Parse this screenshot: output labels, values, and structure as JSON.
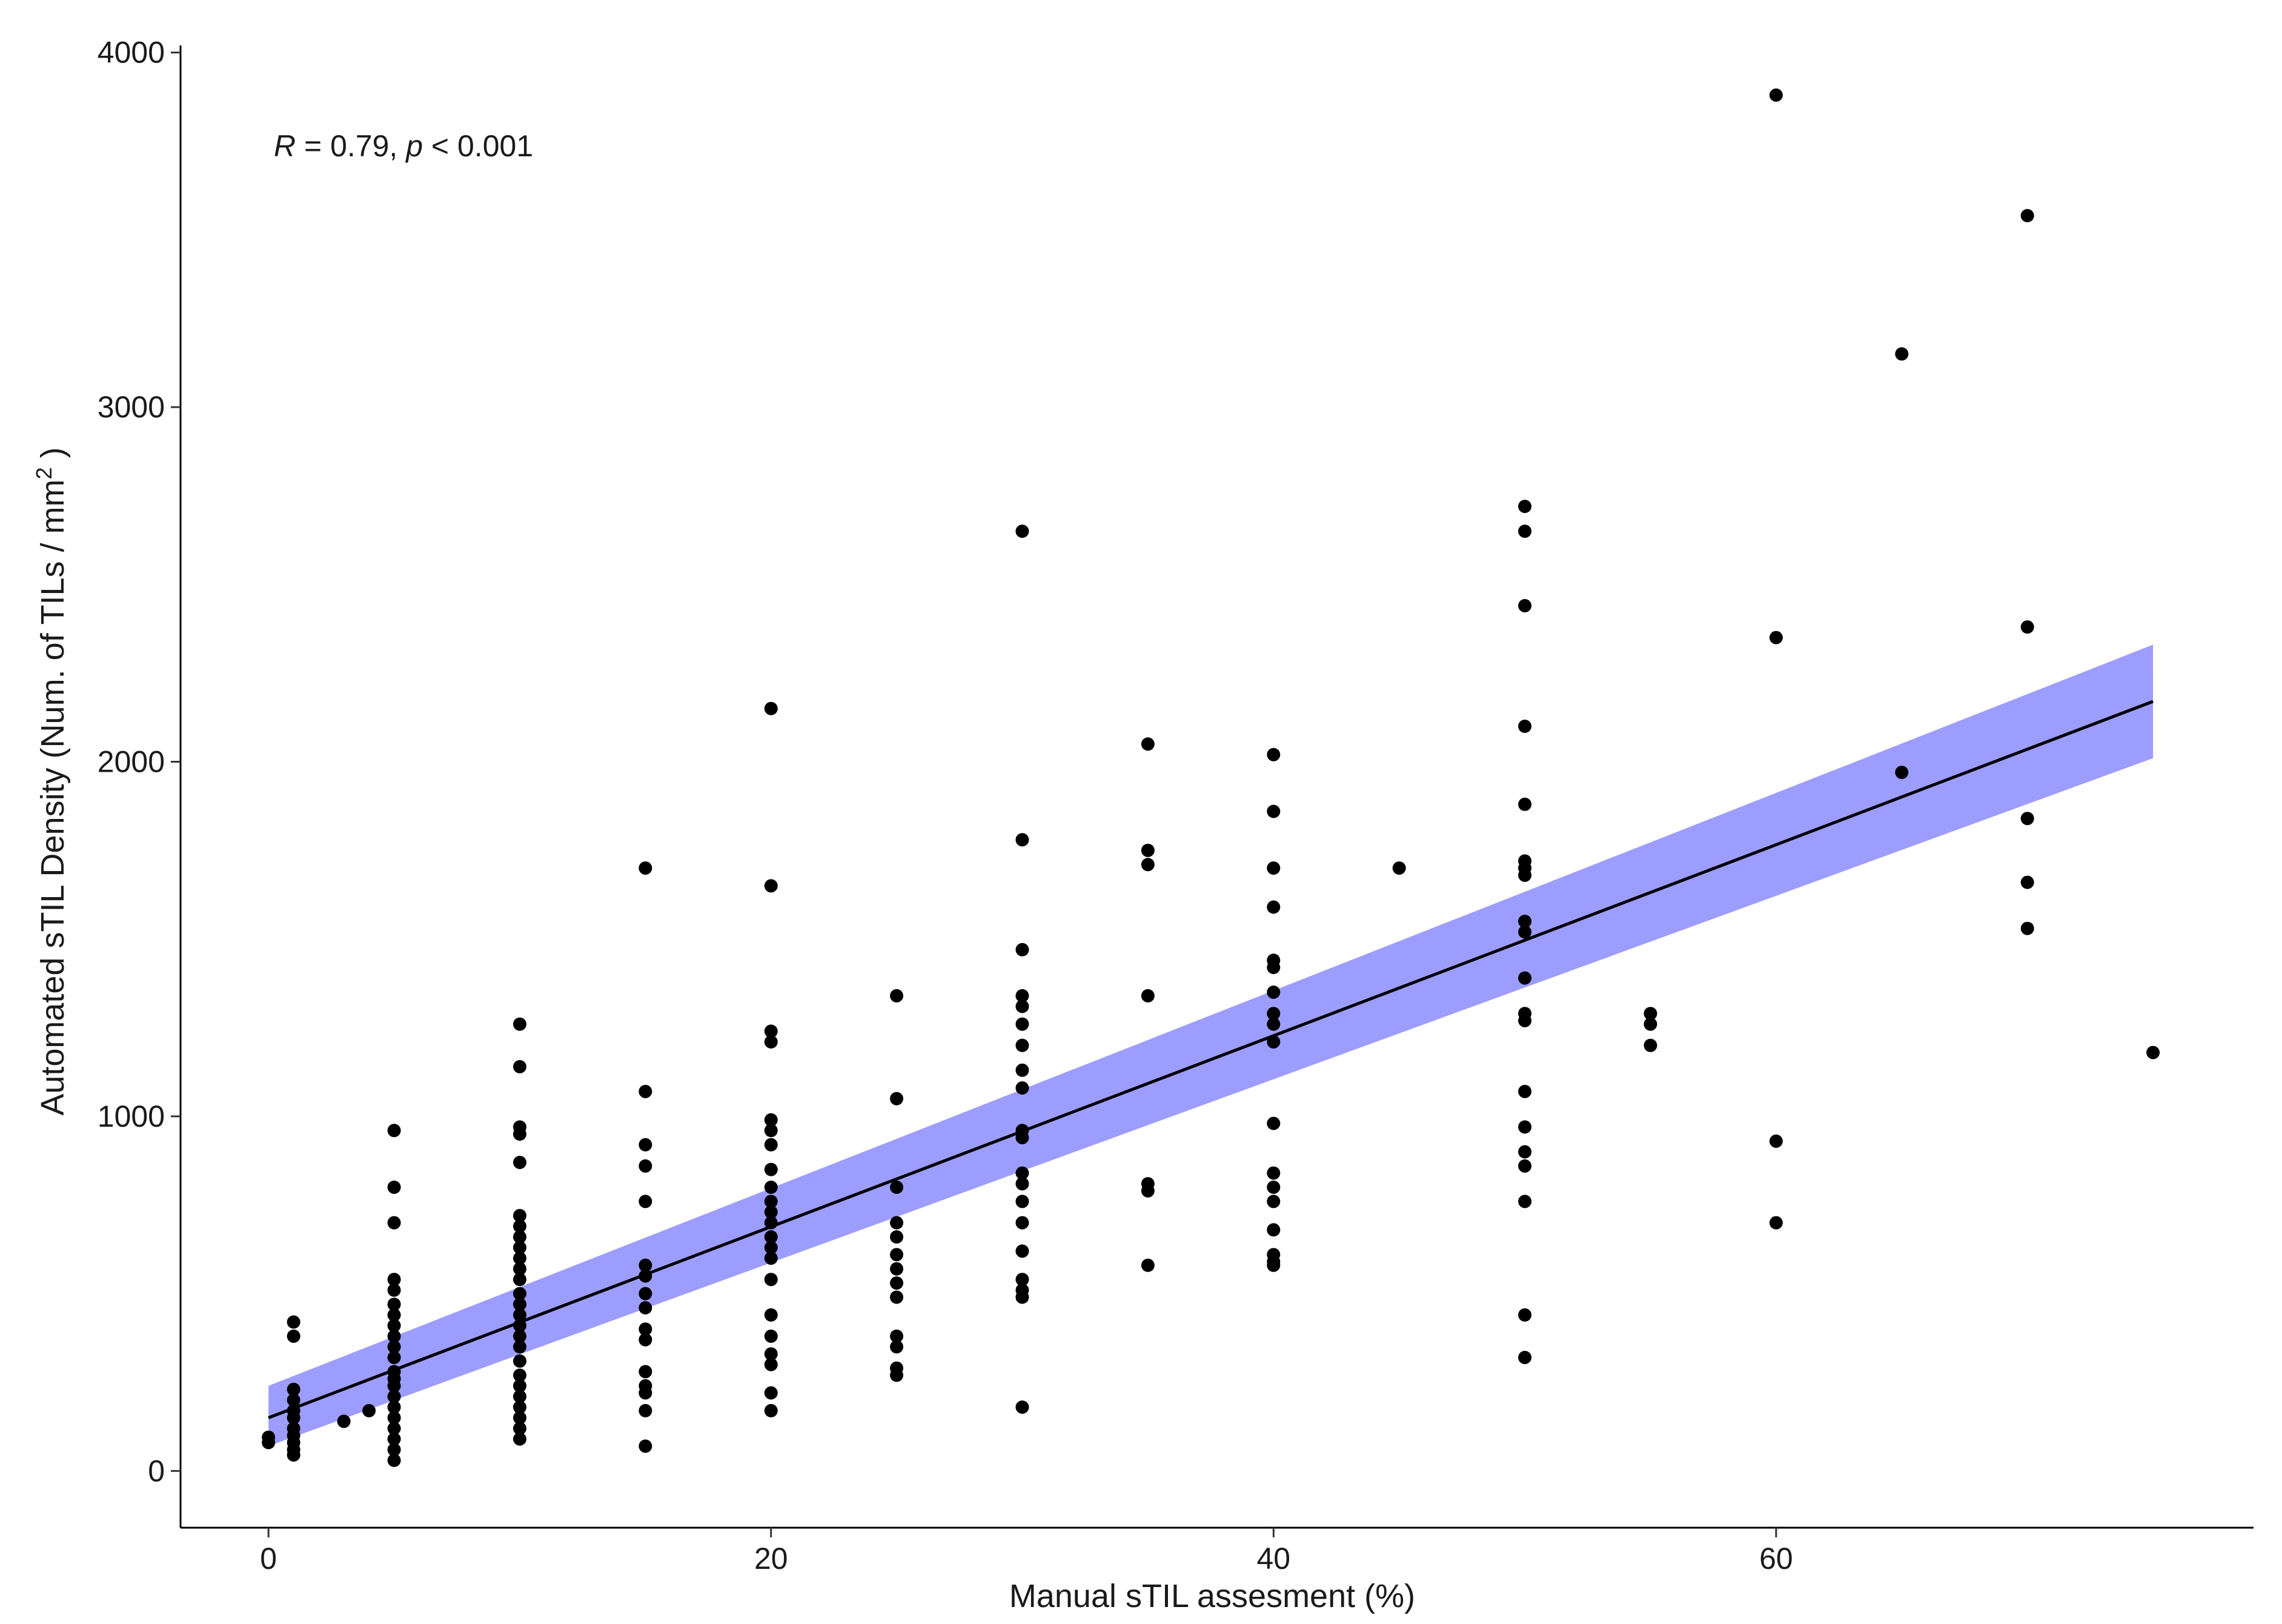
{
  "chart_data": {
    "type": "scatter",
    "xlabel": "Manual sTIL assesment (%)",
    "ylabel": "Automated sTIL Density (Num. of TILs / mm",
    "ylabel_superscript": "2",
    "ylabel_suffix": " )",
    "xlim": [
      -3.5,
      79
    ],
    "ylim": [
      -160,
      4020
    ],
    "x_ticks": [
      0,
      20,
      40,
      60
    ],
    "y_ticks": [
      0,
      1000,
      2000,
      3000,
      4000
    ],
    "x_tick_labels": [
      "0",
      "20",
      "40",
      "60"
    ],
    "y_tick_labels": [
      "0",
      "1000",
      "2000",
      "3000",
      "4000"
    ],
    "grid": false,
    "annotation": {
      "r_symbol": "R",
      "r_text": " = 0.79, ",
      "p_symbol": "p",
      "p_text": " < 0.001"
    },
    "fit": {
      "type": "linear",
      "x": [
        0,
        75
      ],
      "y": [
        150,
        2170
      ],
      "ci_lower": [
        70,
        2010
      ],
      "ci_upper": [
        240,
        2330
      ],
      "line_color": "#000000",
      "band_color": "#8c8cff"
    },
    "point_color": "#000000",
    "points": [
      {
        "x": 0,
        "y": 80
      },
      {
        "x": 0,
        "y": 95
      },
      {
        "x": 1,
        "y": 420
      },
      {
        "x": 1,
        "y": 380
      },
      {
        "x": 1,
        "y": 230
      },
      {
        "x": 1,
        "y": 200
      },
      {
        "x": 1,
        "y": 170
      },
      {
        "x": 1,
        "y": 150
      },
      {
        "x": 1,
        "y": 120
      },
      {
        "x": 1,
        "y": 100
      },
      {
        "x": 1,
        "y": 80
      },
      {
        "x": 1,
        "y": 60
      },
      {
        "x": 1,
        "y": 45
      },
      {
        "x": 3,
        "y": 140
      },
      {
        "x": 4,
        "y": 170
      },
      {
        "x": 5,
        "y": 960
      },
      {
        "x": 5,
        "y": 800
      },
      {
        "x": 5,
        "y": 700
      },
      {
        "x": 5,
        "y": 540
      },
      {
        "x": 5,
        "y": 510
      },
      {
        "x": 5,
        "y": 470
      },
      {
        "x": 5,
        "y": 440
      },
      {
        "x": 5,
        "y": 410
      },
      {
        "x": 5,
        "y": 380
      },
      {
        "x": 5,
        "y": 350
      },
      {
        "x": 5,
        "y": 320
      },
      {
        "x": 5,
        "y": 280
      },
      {
        "x": 5,
        "y": 260
      },
      {
        "x": 5,
        "y": 240
      },
      {
        "x": 5,
        "y": 210
      },
      {
        "x": 5,
        "y": 180
      },
      {
        "x": 5,
        "y": 150
      },
      {
        "x": 5,
        "y": 120
      },
      {
        "x": 5,
        "y": 90
      },
      {
        "x": 5,
        "y": 60
      },
      {
        "x": 5,
        "y": 30
      },
      {
        "x": 10,
        "y": 1260
      },
      {
        "x": 10,
        "y": 1140
      },
      {
        "x": 10,
        "y": 970
      },
      {
        "x": 10,
        "y": 950
      },
      {
        "x": 10,
        "y": 870
      },
      {
        "x": 10,
        "y": 720
      },
      {
        "x": 10,
        "y": 690
      },
      {
        "x": 10,
        "y": 660
      },
      {
        "x": 10,
        "y": 630
      },
      {
        "x": 10,
        "y": 600
      },
      {
        "x": 10,
        "y": 570
      },
      {
        "x": 10,
        "y": 540
      },
      {
        "x": 10,
        "y": 500
      },
      {
        "x": 10,
        "y": 470
      },
      {
        "x": 10,
        "y": 440
      },
      {
        "x": 10,
        "y": 410
      },
      {
        "x": 10,
        "y": 380
      },
      {
        "x": 10,
        "y": 350
      },
      {
        "x": 10,
        "y": 310
      },
      {
        "x": 10,
        "y": 270
      },
      {
        "x": 10,
        "y": 240
      },
      {
        "x": 10,
        "y": 210
      },
      {
        "x": 10,
        "y": 180
      },
      {
        "x": 10,
        "y": 150
      },
      {
        "x": 10,
        "y": 120
      },
      {
        "x": 10,
        "y": 90
      },
      {
        "x": 15,
        "y": 1700
      },
      {
        "x": 15,
        "y": 1070
      },
      {
        "x": 15,
        "y": 920
      },
      {
        "x": 15,
        "y": 860
      },
      {
        "x": 15,
        "y": 760
      },
      {
        "x": 15,
        "y": 580
      },
      {
        "x": 15,
        "y": 550
      },
      {
        "x": 15,
        "y": 500
      },
      {
        "x": 15,
        "y": 460
      },
      {
        "x": 15,
        "y": 400
      },
      {
        "x": 15,
        "y": 370
      },
      {
        "x": 15,
        "y": 280
      },
      {
        "x": 15,
        "y": 240
      },
      {
        "x": 15,
        "y": 220
      },
      {
        "x": 15,
        "y": 170
      },
      {
        "x": 15,
        "y": 70
      },
      {
        "x": 20,
        "y": 2150
      },
      {
        "x": 20,
        "y": 1650
      },
      {
        "x": 20,
        "y": 1240
      },
      {
        "x": 20,
        "y": 1210
      },
      {
        "x": 20,
        "y": 990
      },
      {
        "x": 20,
        "y": 960
      },
      {
        "x": 20,
        "y": 920
      },
      {
        "x": 20,
        "y": 850
      },
      {
        "x": 20,
        "y": 800
      },
      {
        "x": 20,
        "y": 760
      },
      {
        "x": 20,
        "y": 730
      },
      {
        "x": 20,
        "y": 700
      },
      {
        "x": 20,
        "y": 660
      },
      {
        "x": 20,
        "y": 630
      },
      {
        "x": 20,
        "y": 600
      },
      {
        "x": 20,
        "y": 540
      },
      {
        "x": 20,
        "y": 440
      },
      {
        "x": 20,
        "y": 380
      },
      {
        "x": 20,
        "y": 330
      },
      {
        "x": 20,
        "y": 300
      },
      {
        "x": 20,
        "y": 220
      },
      {
        "x": 20,
        "y": 170
      },
      {
        "x": 25,
        "y": 1340
      },
      {
        "x": 25,
        "y": 1050
      },
      {
        "x": 25,
        "y": 800
      },
      {
        "x": 25,
        "y": 700
      },
      {
        "x": 25,
        "y": 660
      },
      {
        "x": 25,
        "y": 610
      },
      {
        "x": 25,
        "y": 570
      },
      {
        "x": 25,
        "y": 530
      },
      {
        "x": 25,
        "y": 490
      },
      {
        "x": 25,
        "y": 380
      },
      {
        "x": 25,
        "y": 350
      },
      {
        "x": 25,
        "y": 290
      },
      {
        "x": 25,
        "y": 270
      },
      {
        "x": 30,
        "y": 2650
      },
      {
        "x": 30,
        "y": 1780
      },
      {
        "x": 30,
        "y": 1470
      },
      {
        "x": 30,
        "y": 1340
      },
      {
        "x": 30,
        "y": 1310
      },
      {
        "x": 30,
        "y": 1260
      },
      {
        "x": 30,
        "y": 1200
      },
      {
        "x": 30,
        "y": 1130
      },
      {
        "x": 30,
        "y": 1080
      },
      {
        "x": 30,
        "y": 960
      },
      {
        "x": 30,
        "y": 940
      },
      {
        "x": 30,
        "y": 840
      },
      {
        "x": 30,
        "y": 810
      },
      {
        "x": 30,
        "y": 760
      },
      {
        "x": 30,
        "y": 700
      },
      {
        "x": 30,
        "y": 620
      },
      {
        "x": 30,
        "y": 540
      },
      {
        "x": 30,
        "y": 510
      },
      {
        "x": 30,
        "y": 490
      },
      {
        "x": 30,
        "y": 180
      },
      {
        "x": 35,
        "y": 2050
      },
      {
        "x": 35,
        "y": 1750
      },
      {
        "x": 35,
        "y": 1710
      },
      {
        "x": 35,
        "y": 1340
      },
      {
        "x": 35,
        "y": 810
      },
      {
        "x": 35,
        "y": 790
      },
      {
        "x": 35,
        "y": 580
      },
      {
        "x": 40,
        "y": 2020
      },
      {
        "x": 40,
        "y": 1860
      },
      {
        "x": 40,
        "y": 1700
      },
      {
        "x": 40,
        "y": 1590
      },
      {
        "x": 40,
        "y": 1440
      },
      {
        "x": 40,
        "y": 1420
      },
      {
        "x": 40,
        "y": 1350
      },
      {
        "x": 40,
        "y": 1290
      },
      {
        "x": 40,
        "y": 1260
      },
      {
        "x": 40,
        "y": 1210
      },
      {
        "x": 40,
        "y": 980
      },
      {
        "x": 40,
        "y": 840
      },
      {
        "x": 40,
        "y": 800
      },
      {
        "x": 40,
        "y": 760
      },
      {
        "x": 40,
        "y": 680
      },
      {
        "x": 40,
        "y": 610
      },
      {
        "x": 40,
        "y": 590
      },
      {
        "x": 40,
        "y": 580
      },
      {
        "x": 45,
        "y": 1700
      },
      {
        "x": 50,
        "y": 2720
      },
      {
        "x": 50,
        "y": 2650
      },
      {
        "x": 50,
        "y": 2440
      },
      {
        "x": 50,
        "y": 2100
      },
      {
        "x": 50,
        "y": 1880
      },
      {
        "x": 50,
        "y": 1720
      },
      {
        "x": 50,
        "y": 1700
      },
      {
        "x": 50,
        "y": 1680
      },
      {
        "x": 50,
        "y": 1550
      },
      {
        "x": 50,
        "y": 1520
      },
      {
        "x": 50,
        "y": 1390
      },
      {
        "x": 50,
        "y": 1290
      },
      {
        "x": 50,
        "y": 1270
      },
      {
        "x": 50,
        "y": 1070
      },
      {
        "x": 50,
        "y": 970
      },
      {
        "x": 50,
        "y": 900
      },
      {
        "x": 50,
        "y": 860
      },
      {
        "x": 50,
        "y": 760
      },
      {
        "x": 50,
        "y": 440
      },
      {
        "x": 50,
        "y": 320
      },
      {
        "x": 55,
        "y": 1290
      },
      {
        "x": 55,
        "y": 1260
      },
      {
        "x": 55,
        "y": 1200
      },
      {
        "x": 60,
        "y": 3880
      },
      {
        "x": 60,
        "y": 2350
      },
      {
        "x": 60,
        "y": 930
      },
      {
        "x": 60,
        "y": 700
      },
      {
        "x": 65,
        "y": 3150
      },
      {
        "x": 65,
        "y": 1970
      },
      {
        "x": 70,
        "y": 3540
      },
      {
        "x": 70,
        "y": 2380
      },
      {
        "x": 70,
        "y": 1840
      },
      {
        "x": 70,
        "y": 1660
      },
      {
        "x": 70,
        "y": 1530
      },
      {
        "x": 75,
        "y": 1180
      }
    ]
  }
}
